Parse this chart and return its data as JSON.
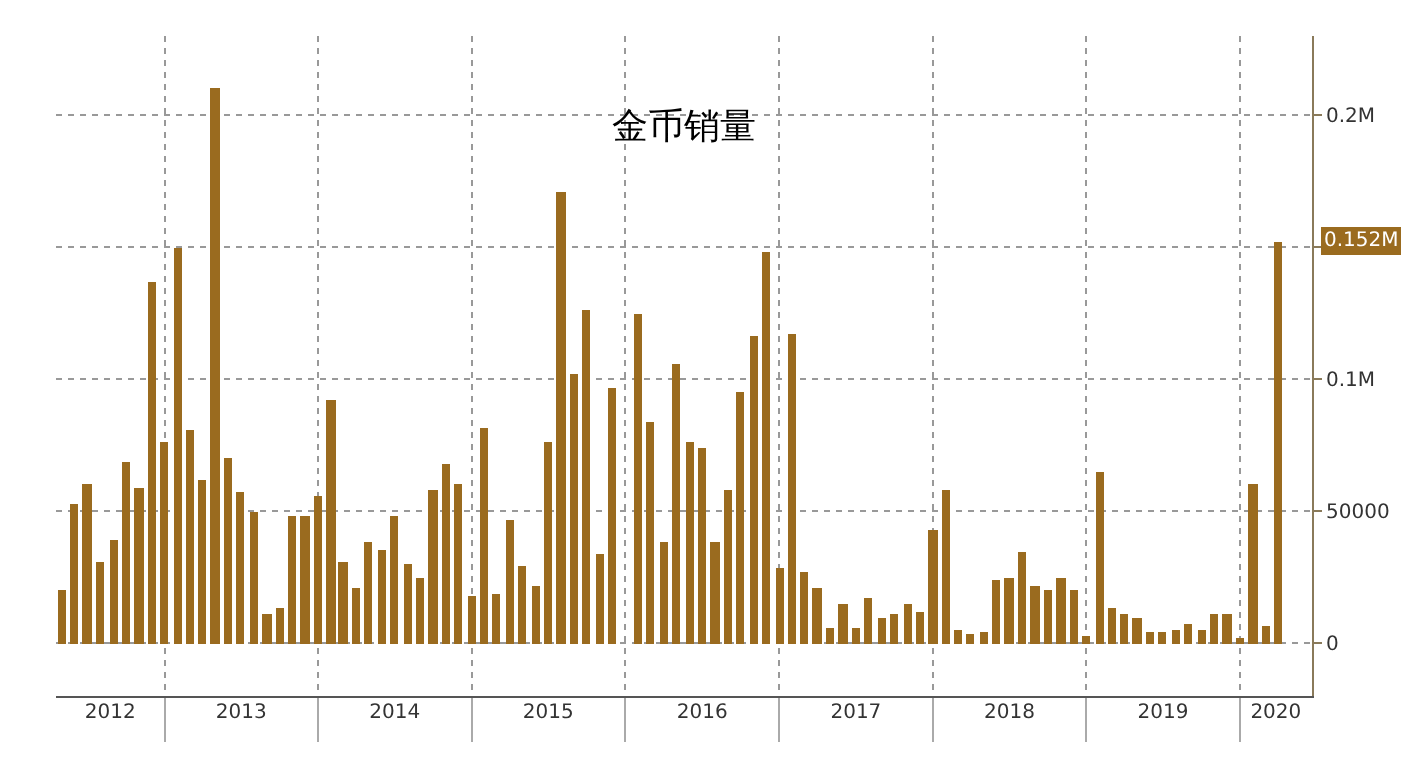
{
  "chart_data": {
    "type": "bar",
    "title": "金币销量",
    "color": "#9a6b1f",
    "x": [
      "2012-05",
      "2012-06",
      "2012-07",
      "2012-08",
      "2012-09",
      "2012-10",
      "2012-11",
      "2012-12",
      "2013-01",
      "2013-02",
      "2013-03",
      "2013-04",
      "2013-05",
      "2013-06",
      "2013-07",
      "2013-08",
      "2013-09",
      "2013-10",
      "2013-11",
      "2013-12",
      "2014-01",
      "2014-02",
      "2014-03",
      "2014-04",
      "2014-05",
      "2014-06",
      "2014-07",
      "2014-08",
      "2014-09",
      "2014-10",
      "2014-11",
      "2014-12",
      "2015-01",
      "2015-02",
      "2015-03",
      "2015-04",
      "2015-05",
      "2015-06",
      "2015-07",
      "2015-08",
      "2015-09",
      "2015-10",
      "2015-11",
      "2015-12",
      "2016-01",
      "2016-02",
      "2016-03",
      "2016-04",
      "2016-05",
      "2016-06",
      "2016-07",
      "2016-08",
      "2016-09",
      "2016-10",
      "2016-11",
      "2016-12",
      "2017-01",
      "2017-02",
      "2017-03",
      "2017-04",
      "2017-05",
      "2017-06",
      "2017-07",
      "2017-08",
      "2017-09",
      "2017-10",
      "2017-11",
      "2017-12",
      "2018-01",
      "2018-02",
      "2018-03",
      "2018-04",
      "2018-05",
      "2018-06",
      "2018-07",
      "2018-08",
      "2018-09",
      "2018-10",
      "2018-11",
      "2018-12",
      "2019-01",
      "2019-02",
      "2019-03",
      "2019-04",
      "2019-05",
      "2019-06",
      "2019-07",
      "2019-08",
      "2019-09",
      "2019-10",
      "2019-11",
      "2019-12",
      "2020-01",
      "2020-02",
      "2020-03",
      "2020-04"
    ],
    "values": [
      20000,
      53000,
      60000,
      30500,
      39000,
      69000,
      59000,
      137000,
      76000,
      150000,
      81000,
      62000,
      210000,
      70000,
      57000,
      50000,
      11000,
      13000,
      48500,
      48000,
      56000,
      92000,
      31000,
      21000,
      38600,
      35000,
      48500,
      30000,
      25000,
      58000,
      68000,
      60000,
      17700,
      81500,
      18400,
      46500,
      29000,
      21500,
      76000,
      171000,
      102000,
      126000,
      34000,
      97000,
      null,
      124500,
      84000,
      38000,
      105500,
      76000,
      74000,
      38600,
      58000,
      95000,
      116000,
      148000,
      28500,
      117000,
      27000,
      20700,
      5500,
      15000,
      5500,
      17000,
      9300,
      11400,
      15000,
      12000,
      43000,
      58000,
      5000,
      3500,
      4500,
      24000,
      24700,
      34600,
      21500,
      20500,
      24700,
      20000,
      3000,
      65000,
      13000,
      11400,
      9600,
      4000,
      4500,
      5000,
      7600,
      5000,
      11400,
      10900,
      1800,
      60000,
      6800,
      152000
    ],
    "xlim": [
      "2012-04-18",
      "2020-06-20"
    ],
    "xticks": [
      {
        "value": "2013-01-01",
        "label": null
      },
      {
        "value": "2014-01-01",
        "label": null
      },
      {
        "value": "2015-01-01",
        "label": null
      },
      {
        "value": "2016-01-01",
        "label": null
      },
      {
        "value": "2017-01-01",
        "label": null
      },
      {
        "value": "2018-01-01",
        "label": null
      },
      {
        "value": "2019-01-01",
        "label": null
      },
      {
        "value": "2020-01-01",
        "label": null
      },
      {
        "value": "2012-08-25",
        "label": "2012"
      },
      {
        "value": "2013-07-02",
        "label": "2013"
      },
      {
        "value": "2014-07-02",
        "label": "2014"
      },
      {
        "value": "2015-07-02",
        "label": "2015"
      },
      {
        "value": "2016-07-02",
        "label": "2016"
      },
      {
        "value": "2017-07-02",
        "label": "2017"
      },
      {
        "value": "2018-07-02",
        "label": "2018"
      },
      {
        "value": "2019-07-02",
        "label": "2019"
      },
      {
        "value": "2020-03-26",
        "label": "2020"
      }
    ],
    "ylim": [
      -20000,
      230000
    ],
    "yticks": [
      0,
      50000,
      {
        "value": 100000,
        "label": "0.1M"
      },
      {
        "value": 150000,
        "label": null
      },
      {
        "value": 200000,
        "label": "0.2M"
      }
    ],
    "grid": true,
    "annotations": [
      "0.152M"
    ]
  }
}
